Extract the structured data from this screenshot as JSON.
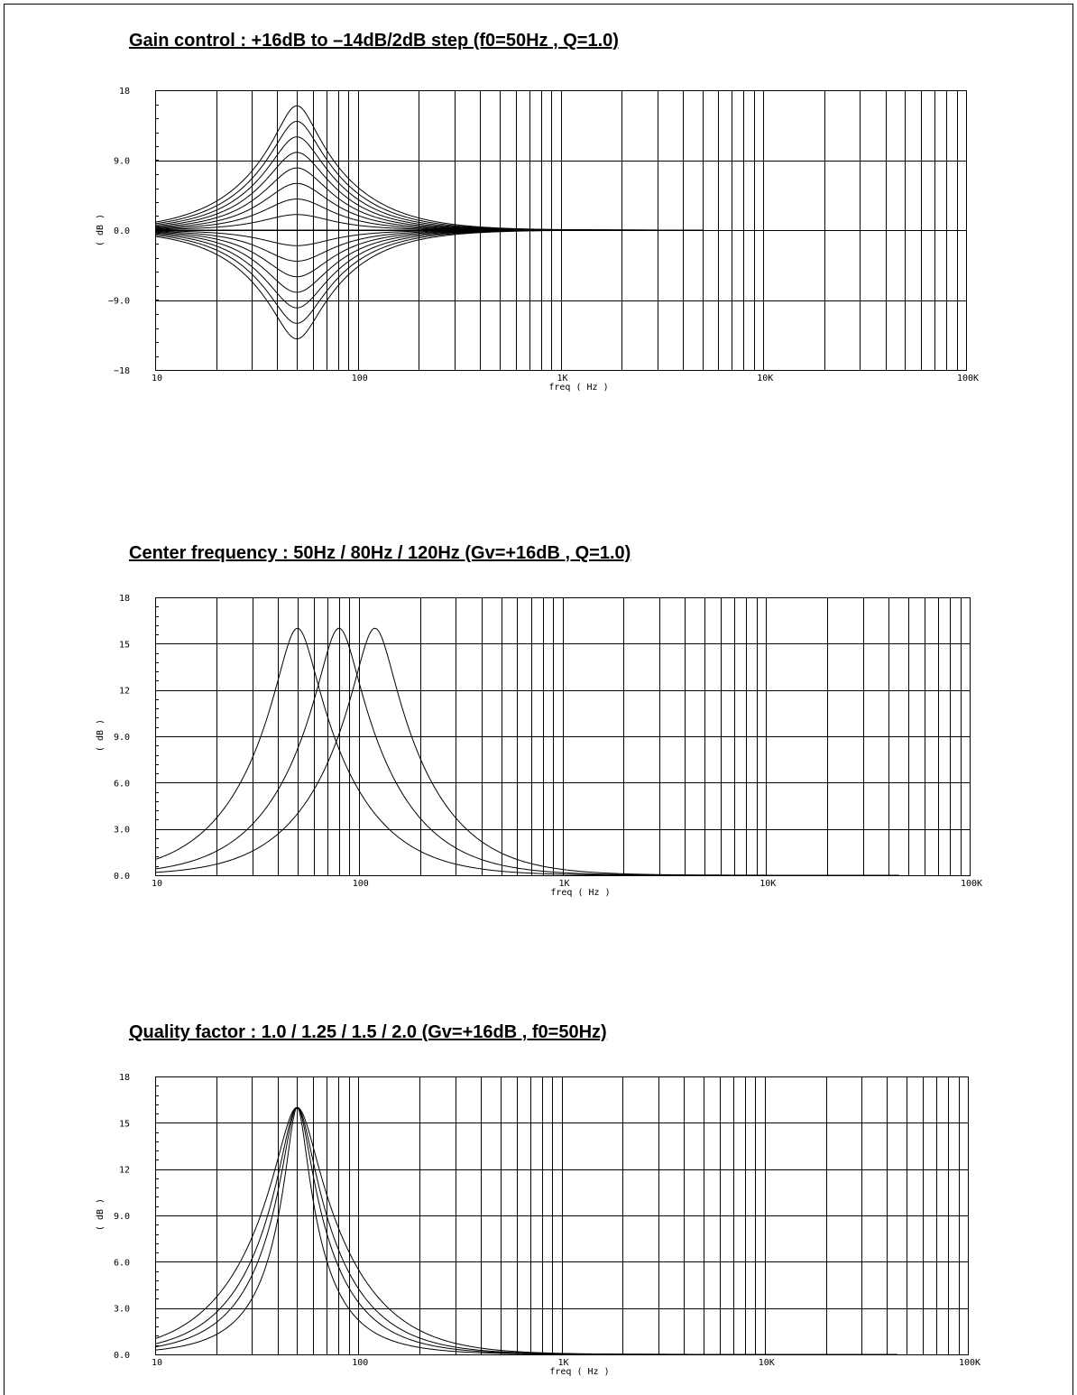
{
  "page": {},
  "chart_data": [
    {
      "type": "line",
      "title": "Gain control : +16dB to –14dB/2dB step (f0=50Hz , Q=1.0)",
      "xlabel": "freq ( Hz )",
      "ylabel": "( dB )",
      "xscale": "log",
      "xlim": [
        10,
        100000
      ],
      "ylim": [
        -18,
        18
      ],
      "xticks": [
        10,
        100,
        1000,
        10000,
        100000
      ],
      "xtick_labels": [
        "10",
        "100",
        "1K",
        "10K",
        "100K"
      ],
      "yticks": [
        -18,
        -9,
        0,
        9,
        18
      ],
      "ytick_labels": [
        "−18",
        "−9.0",
        "0.0",
        "9.0",
        "18"
      ],
      "grid": true,
      "x_end": 5000,
      "series": [
        {
          "f0": 50,
          "q": 1.0,
          "gain_db": 16
        },
        {
          "f0": 50,
          "q": 1.0,
          "gain_db": 14
        },
        {
          "f0": 50,
          "q": 1.0,
          "gain_db": 12
        },
        {
          "f0": 50,
          "q": 1.0,
          "gain_db": 10
        },
        {
          "f0": 50,
          "q": 1.0,
          "gain_db": 8
        },
        {
          "f0": 50,
          "q": 1.0,
          "gain_db": 6
        },
        {
          "f0": 50,
          "q": 1.0,
          "gain_db": 4
        },
        {
          "f0": 50,
          "q": 1.0,
          "gain_db": 2
        },
        {
          "f0": 50,
          "q": 1.0,
          "gain_db": 0
        },
        {
          "f0": 50,
          "q": 1.0,
          "gain_db": -2
        },
        {
          "f0": 50,
          "q": 1.0,
          "gain_db": -4
        },
        {
          "f0": 50,
          "q": 1.0,
          "gain_db": -6
        },
        {
          "f0": 50,
          "q": 1.0,
          "gain_db": -8
        },
        {
          "f0": 50,
          "q": 1.0,
          "gain_db": -10
        },
        {
          "f0": 50,
          "q": 1.0,
          "gain_db": -12
        },
        {
          "f0": 50,
          "q": 1.0,
          "gain_db": -14
        }
      ]
    },
    {
      "type": "line",
      "title": "Center frequency : 50Hz / 80Hz / 120Hz (Gv=+16dB , Q=1.0)",
      "xlabel": "freq ( Hz )",
      "ylabel": "( dB )",
      "xscale": "log",
      "xlim": [
        10,
        100000
      ],
      "ylim": [
        0,
        18
      ],
      "xticks": [
        10,
        100,
        1000,
        10000,
        100000
      ],
      "xtick_labels": [
        "10",
        "100",
        "1K",
        "10K",
        "100K"
      ],
      "yticks": [
        0,
        3,
        6,
        9,
        12,
        15,
        18
      ],
      "ytick_labels": [
        "0.0",
        "3.0",
        "6.0",
        "9.0",
        "12",
        "15",
        "18"
      ],
      "grid": true,
      "x_end": 45000,
      "series": [
        {
          "f0": 50,
          "q": 1.0,
          "gain_db": 16
        },
        {
          "f0": 80,
          "q": 1.0,
          "gain_db": 16
        },
        {
          "f0": 120,
          "q": 1.0,
          "gain_db": 16
        }
      ]
    },
    {
      "type": "line",
      "title": "Quality factor : 1.0 / 1.25 / 1.5 / 2.0 (Gv=+16dB , f0=50Hz)",
      "xlabel": "freq ( Hz )",
      "ylabel": "( dB )",
      "xscale": "log",
      "xlim": [
        10,
        100000
      ],
      "ylim": [
        0,
        18
      ],
      "xticks": [
        10,
        100,
        1000,
        10000,
        100000
      ],
      "xtick_labels": [
        "10",
        "100",
        "1K",
        "10K",
        "100K"
      ],
      "yticks": [
        0,
        3,
        6,
        9,
        12,
        15,
        18
      ],
      "ytick_labels": [
        "0.0",
        "3.0",
        "6.0",
        "9.0",
        "12",
        "15",
        "18"
      ],
      "grid": true,
      "x_end": 45000,
      "series": [
        {
          "f0": 50,
          "q": 1.0,
          "gain_db": 16
        },
        {
          "f0": 50,
          "q": 1.25,
          "gain_db": 16
        },
        {
          "f0": 50,
          "q": 1.5,
          "gain_db": 16
        },
        {
          "f0": 50,
          "q": 2.0,
          "gain_db": 16
        }
      ]
    }
  ]
}
